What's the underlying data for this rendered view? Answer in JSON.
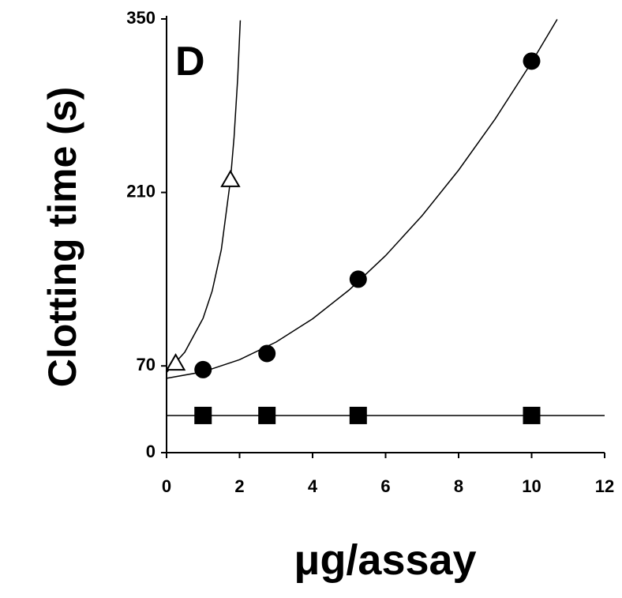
{
  "chart_data": {
    "type": "scatter",
    "panel_label": "D",
    "xlabel": "μg/assay",
    "ylabel": "Clotting time (s)",
    "xlim": [
      0,
      12
    ],
    "xticks": [
      0,
      2,
      4,
      6,
      8,
      10,
      12
    ],
    "ylim": [
      0,
      350
    ],
    "yticks": [
      0,
      70,
      210,
      350
    ],
    "series": [
      {
        "marker": "circle",
        "color": "#000000",
        "x": [
          1,
          2.75,
          5.25,
          10
        ],
        "values": [
          67,
          80,
          140,
          316
        ]
      },
      {
        "marker": "triangle",
        "color": "#ffffff",
        "x": [
          0.25,
          1.75
        ],
        "values": [
          72,
          220
        ]
      },
      {
        "marker": "square",
        "color": "#000000",
        "x": [
          1,
          2.75,
          5.25,
          10
        ],
        "values": [
          30,
          30,
          30,
          30
        ]
      },
      {
        "marker": "line",
        "color": "#000000",
        "x": [
          0,
          1,
          2,
          3,
          4,
          5,
          6,
          7,
          8,
          9,
          10,
          10.7
        ],
        "values": [
          60,
          65.25,
          75,
          89.25,
          108,
          131.25,
          159,
          191.25,
          228,
          269.25,
          315,
          349.7
        ]
      },
      {
        "marker": "line",
        "color": "#000000",
        "x": [
          0,
          0.5,
          1,
          1.25,
          1.5,
          1.75,
          1.85,
          1.95,
          2.02
        ],
        "values": [
          64.7,
          81.1,
          108.4,
          130.5,
          163.8,
          219.9,
          254.8,
          302.8,
          348.9
        ]
      },
      {
        "marker": "line",
        "color": "#000000",
        "x": [
          0,
          12
        ],
        "values": [
          30,
          30
        ]
      }
    ]
  }
}
